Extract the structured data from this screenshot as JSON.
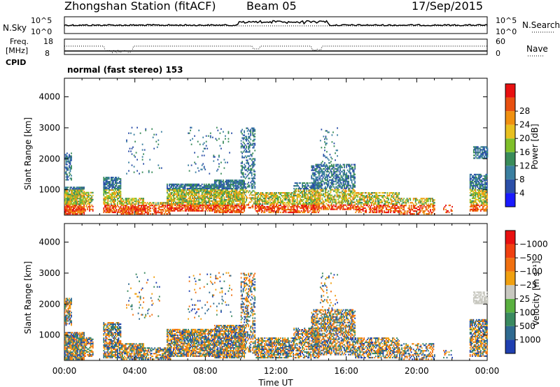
{
  "header": {
    "station": "Zhongshan Station (fitACF)",
    "beam": "Beam 05",
    "date": "17/Sep/2015"
  },
  "top_panels": {
    "nsky_label": "N.Sky",
    "nsky_ticks": [
      "10^5",
      "10^0"
    ],
    "nsearch_label": "N.Search",
    "nsearch_ticks": [
      "10^5",
      "10^0"
    ],
    "freq_label_1": "Freq.",
    "freq_label_2": "[MHz]",
    "freq_ticks": [
      "18",
      "8"
    ],
    "nave_label": "Nave",
    "nave_ticks": [
      "60",
      "0"
    ],
    "cpid_label": "CPID",
    "cpid_text": "normal (fast stereo) 153"
  },
  "chart_data": [
    {
      "type": "heatmap",
      "name": "Power",
      "ylabel": "Slant Range [km]",
      "xlabel": "Time UT",
      "x_ticks": [
        "00:00",
        "04:00",
        "08:00",
        "12:00",
        "16:00",
        "20:00",
        "00:00"
      ],
      "x_range_hours": [
        0,
        24
      ],
      "y_ticks": [
        1000,
        2000,
        3000,
        4000
      ],
      "ylim": [
        180,
        4600
      ],
      "colorbar": {
        "label": "Power [dB]",
        "labels": [
          "4",
          "8",
          "12",
          "16",
          "20",
          "24",
          "28"
        ],
        "colors": [
          "#1a1aff",
          "#2b4fa8",
          "#3a7fa0",
          "#3a8c5a",
          "#7fbf2a",
          "#e8c020",
          "#f09010",
          "#e85010",
          "#e81010"
        ]
      }
    },
    {
      "type": "heatmap",
      "name": "Velocity",
      "ylabel": "Slant Range [km]",
      "xlabel": "Time UT",
      "x_ticks": [
        "00:00",
        "04:00",
        "08:00",
        "12:00",
        "16:00",
        "20:00",
        "00:00"
      ],
      "x_range_hours": [
        0,
        24
      ],
      "y_ticks": [
        1000,
        2000,
        3000,
        4000
      ],
      "ylim": [
        180,
        4600
      ],
      "colorbar": {
        "label": "Velocity [m s⁻¹]",
        "labels": [
          "1000",
          "500",
          "100",
          "25",
          "−25",
          "−100",
          "−500",
          "−1000"
        ],
        "colors": [
          "#1f3fb0",
          "#2f6a90",
          "#3a8a60",
          "#5ab040",
          "#c8c8c0",
          "#f0a010",
          "#f07010",
          "#f04010",
          "#e81010"
        ]
      }
    }
  ],
  "xaxis_title": "Time UT"
}
